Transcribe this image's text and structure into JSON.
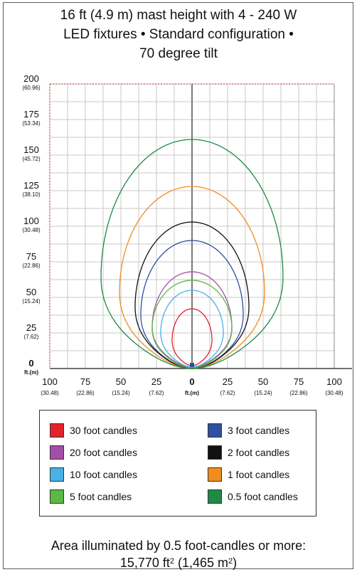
{
  "title": {
    "line1": "16 ft (4.9 m) mast height with 4 - 240 W",
    "line2": "LED fixtures • Standard configuration •",
    "line3": "70 degree tilt"
  },
  "chart_data": {
    "type": "line",
    "title": "16 ft (4.9 m) mast height with 4 - 240 W LED fixtures • Standard configuration • 70 degree tilt",
    "y_ticks": [
      {
        "value": 200,
        "label": "200",
        "sub": "(60.96)"
      },
      {
        "value": 175,
        "label": "175",
        "sub": "(53.34)"
      },
      {
        "value": 150,
        "label": "150",
        "sub": "(45.72)"
      },
      {
        "value": 125,
        "label": "125",
        "sub": "(38.10)"
      },
      {
        "value": 100,
        "label": "100",
        "sub": "(30.48)"
      },
      {
        "value": 75,
        "label": "75",
        "sub": "(22.86)"
      },
      {
        "value": 50,
        "label": "50",
        "sub": "(15.24)"
      },
      {
        "value": 25,
        "label": "25",
        "sub": "(7.62)"
      },
      {
        "value": 0,
        "label": "0",
        "sub": "ft.(m)"
      }
    ],
    "x_ticks": [
      {
        "value": -100,
        "label": "100",
        "sub": "(30.48)"
      },
      {
        "value": -75,
        "label": "75",
        "sub": "(22.86)"
      },
      {
        "value": -50,
        "label": "50",
        "sub": "(15.24)"
      },
      {
        "value": -25,
        "label": "25",
        "sub": "(7.62)"
      },
      {
        "value": 0,
        "label": "0",
        "sub": "ft.(m)"
      },
      {
        "value": 25,
        "label": "25",
        "sub": "(7.62)"
      },
      {
        "value": 50,
        "label": "50",
        "sub": "(15.24)"
      },
      {
        "value": 75,
        "label": "75",
        "sub": "(22.86)"
      },
      {
        "value": 100,
        "label": "100",
        "sub": "(30.48)"
      }
    ],
    "xlim": [
      -100,
      100
    ],
    "ylim": [
      0,
      200
    ],
    "grid": true,
    "series": [
      {
        "name": "30 foot candles",
        "color": "#e3222b",
        "half_width": 14,
        "top": 42,
        "bottom": 2,
        "belly": 0.45
      },
      {
        "name": "20 foot candles",
        "color": "#a34fa6",
        "half_width": 28,
        "top": 68,
        "bottom": 1,
        "belly": 0.42
      },
      {
        "name": "10 foot candles",
        "color": "#47b2e3",
        "half_width": 22,
        "top": 55,
        "bottom": 1,
        "belly": 0.45
      },
      {
        "name": "5 foot candles",
        "color": "#5db944",
        "half_width": 28,
        "top": 62,
        "bottom": 0.5,
        "belly": 0.45
      },
      {
        "name": "3 foot candles",
        "color": "#2f4fa0",
        "half_width": 36,
        "top": 90,
        "bottom": 0,
        "belly": 0.42
      },
      {
        "name": "2 foot candles",
        "color": "#111111",
        "half_width": 40,
        "top": 103,
        "bottom": 0,
        "belly": 0.42
      },
      {
        "name": "1 foot candles",
        "color": "#f28c1f",
        "half_width": 51,
        "top": 128,
        "bottom": 0,
        "belly": 0.42
      },
      {
        "name": "0.5 foot candles",
        "color": "#1e8a46",
        "half_width": 64,
        "top": 161,
        "bottom": 0,
        "belly": 0.4
      }
    ]
  },
  "legend": {
    "items": [
      {
        "label": "30 foot candles",
        "color": "#e3222b"
      },
      {
        "label": "3 foot candles",
        "color": "#2f4fa0"
      },
      {
        "label": "20 foot candles",
        "color": "#a34fa6"
      },
      {
        "label": "2 foot candles",
        "color": "#111111"
      },
      {
        "label": "10 foot candles",
        "color": "#47b2e3"
      },
      {
        "label": "1 foot candles",
        "color": "#f28c1f"
      },
      {
        "label": "5 foot candles",
        "color": "#5db944"
      },
      {
        "label": "0.5 foot candles",
        "color": "#1e8a46"
      }
    ]
  },
  "footer": {
    "line1": "Area illuminated by 0.5 foot-candles or more:",
    "area_ft": "15,770 ft",
    "area_ft_unit": "2",
    "area_m_open": " (1,465 m",
    "area_m_unit": "2",
    "area_m_close": ")"
  }
}
